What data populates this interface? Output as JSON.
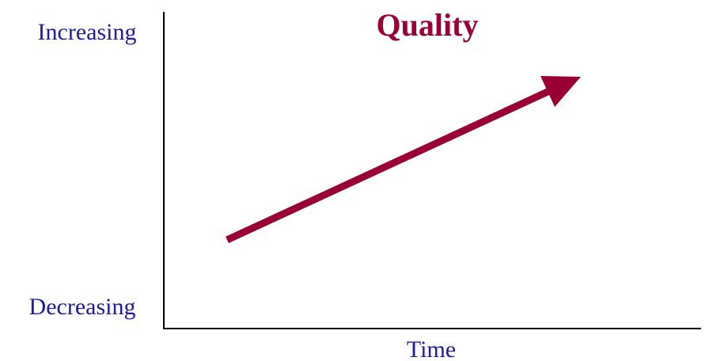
{
  "title": "Quality",
  "y_axis": {
    "top_label": "Increasing",
    "bottom_label": "Decreasing"
  },
  "x_axis": {
    "label": "Time"
  }
}
